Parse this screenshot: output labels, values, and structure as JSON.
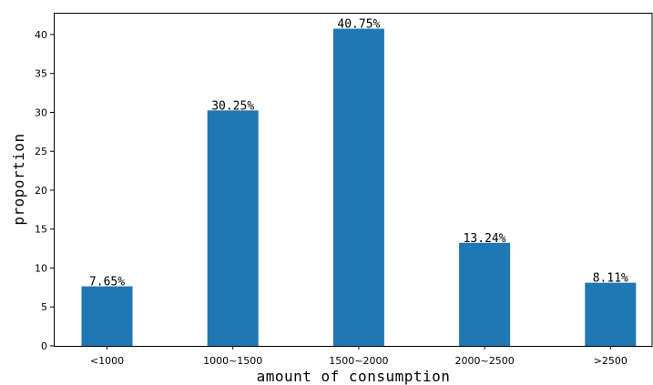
{
  "chart_data": {
    "type": "bar",
    "categories": [
      "<1000",
      "1000~1500",
      "1500~2000",
      "2000~2500",
      ">2500"
    ],
    "values": [
      7.65,
      30.25,
      40.75,
      13.24,
      8.11
    ],
    "data_labels": [
      "7.65%",
      "30.25%",
      "40.75%",
      "13.24%",
      "8.11%"
    ],
    "xlabel": "amount of consumption",
    "ylabel": "proportion",
    "ylim": [
      0,
      42.8
    ],
    "yticks": [
      0,
      5,
      10,
      15,
      20,
      25,
      30,
      35,
      40
    ],
    "bar_color": "#1f77b4",
    "grid": false
  }
}
